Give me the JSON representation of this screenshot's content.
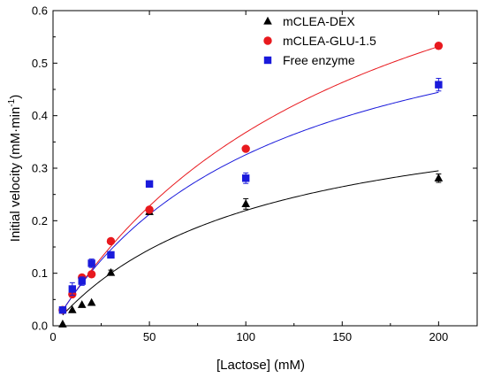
{
  "chart_data": {
    "type": "scatter",
    "title": "",
    "xlabel": "[Lactose] (mM)",
    "ylabel_main": "Initial velocity (mM·min",
    "ylabel_sup": "-1",
    "ylabel_tail": ")",
    "xlim": [
      0,
      220
    ],
    "ylim": [
      0,
      0.6
    ],
    "xticks": [
      0,
      50,
      100,
      150,
      200
    ],
    "yticks": [
      0.0,
      0.1,
      0.2,
      0.3,
      0.4,
      0.5,
      0.6
    ],
    "xtick_labels": [
      "0",
      "50",
      "100",
      "150",
      "200"
    ],
    "ytick_labels": [
      "0.0",
      "0.1",
      "0.2",
      "0.3",
      "0.4",
      "0.5",
      "0.6"
    ],
    "grid": false,
    "legend_position": "top-right",
    "series": [
      {
        "name": "mCLEA-DEX",
        "marker": "triangle",
        "color": "#000000",
        "x": [
          5,
          10,
          15,
          20,
          30,
          50,
          100,
          200
        ],
        "y": [
          0.003,
          0.03,
          0.04,
          0.044,
          0.101,
          0.217,
          0.232,
          0.281
        ],
        "err": [
          0,
          0,
          0,
          0,
          0.005,
          0.005,
          0.01,
          0.008
        ],
        "fit": {
          "vmax": 0.45,
          "km": 105
        }
      },
      {
        "name": "mCLEA-GLU-1.5",
        "marker": "circle",
        "color": "#e8191e",
        "x": [
          5,
          10,
          15,
          20,
          30,
          50,
          100,
          200
        ],
        "y": [
          0.03,
          0.06,
          0.092,
          0.098,
          0.161,
          0.221,
          0.337,
          0.533
        ],
        "err": [
          0,
          0,
          0,
          0,
          0,
          0,
          0,
          0
        ],
        "fit": {
          "vmax": 0.957,
          "km": 160
        }
      },
      {
        "name": "Free enzyme",
        "marker": "square",
        "color": "#1a1adb",
        "x": [
          5,
          10,
          15,
          20,
          30,
          50,
          100,
          200
        ],
        "y": [
          0.03,
          0.07,
          0.085,
          0.119,
          0.135,
          0.27,
          0.281,
          0.459
        ],
        "err": [
          0.003,
          0.012,
          0.008,
          0.008,
          0.004,
          0.005,
          0.01,
          0.012
        ],
        "fit": {
          "vmax": 0.7,
          "km": 115
        }
      }
    ]
  }
}
